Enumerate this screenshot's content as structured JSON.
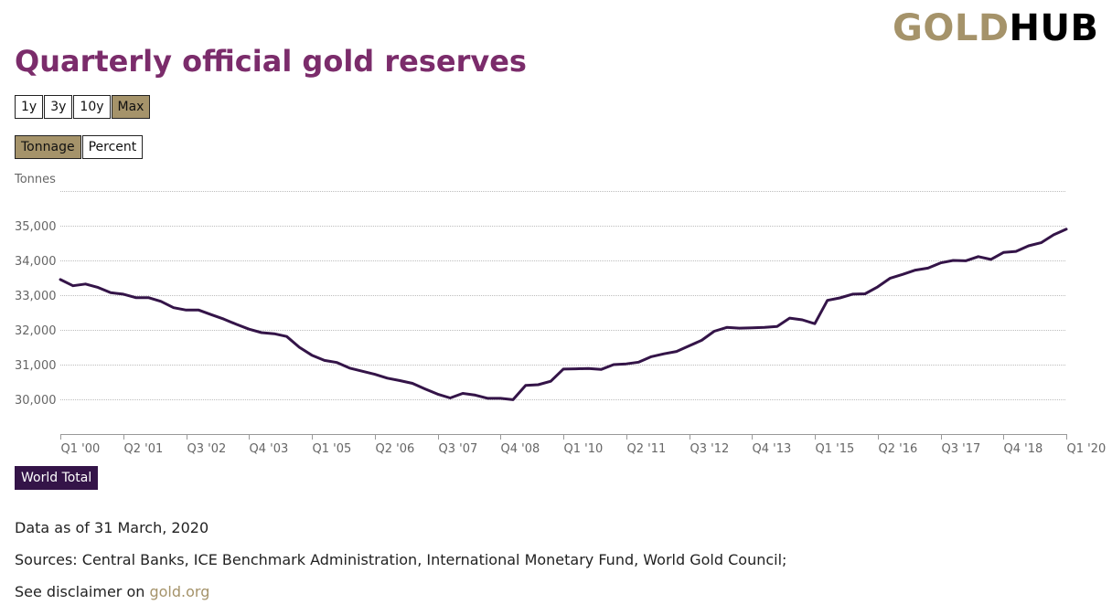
{
  "logo": {
    "part1": "GOLD",
    "part2": "HUB"
  },
  "title": "Quarterly official gold reserves",
  "range_buttons": [
    {
      "label": "1y",
      "active": false
    },
    {
      "label": "3y",
      "active": false
    },
    {
      "label": "10y",
      "active": false
    },
    {
      "label": "Max",
      "active": true
    }
  ],
  "mode_buttons": [
    {
      "label": "Tonnage",
      "active": true
    },
    {
      "label": "Percent",
      "active": false
    }
  ],
  "chart_data": {
    "type": "line",
    "ylabel": "Tonnes",
    "ylim": [
      29000,
      36000
    ],
    "yticks": [
      30000,
      31000,
      32000,
      33000,
      34000,
      35000
    ],
    "ytick_labels": [
      "30,000",
      "31,000",
      "32,000",
      "33,000",
      "34,000",
      "35,000"
    ],
    "xtick_labels": [
      "Q1 '00",
      "Q2 '01",
      "Q3 '02",
      "Q4 '03",
      "Q1 '05",
      "Q2 '06",
      "Q3 '07",
      "Q4 '08",
      "Q1 '10",
      "Q2 '11",
      "Q3 '12",
      "Q4 '13",
      "Q1 '15",
      "Q2 '16",
      "Q3 '17",
      "Q4 '18",
      "Q1 '20"
    ],
    "xtick_step": 5,
    "grid": true,
    "series": [
      {
        "name": "World Total",
        "color": "#341448",
        "values": [
          33450,
          33270,
          33320,
          33220,
          33070,
          33030,
          32930,
          32930,
          32820,
          32640,
          32570,
          32570,
          32440,
          32310,
          32160,
          32020,
          31920,
          31890,
          31810,
          31500,
          31270,
          31120,
          31060,
          30900,
          30810,
          30720,
          30610,
          30540,
          30460,
          30300,
          30150,
          30040,
          30170,
          30120,
          30030,
          30030,
          29990,
          30400,
          30420,
          30520,
          30870,
          30880,
          30890,
          30860,
          31000,
          31020,
          31070,
          31230,
          31310,
          31380,
          31540,
          31700,
          31960,
          32070,
          32050,
          32060,
          32070,
          32100,
          32340,
          32290,
          32180,
          32850,
          32920,
          33030,
          33040,
          33240,
          33490,
          33600,
          33720,
          33780,
          33930,
          34000,
          33990,
          34110,
          34030,
          34230,
          34260,
          34420,
          34510,
          34740,
          34900
        ]
      }
    ]
  },
  "footer": {
    "data_as_of": "Data as of 31 March, 2020",
    "sources": "Sources: Central Banks, ICE Benchmark Administration, International Monetary Fund, World Gold Council;",
    "disclaimer_prefix": "See disclaimer on ",
    "disclaimer_link": "gold.org"
  }
}
